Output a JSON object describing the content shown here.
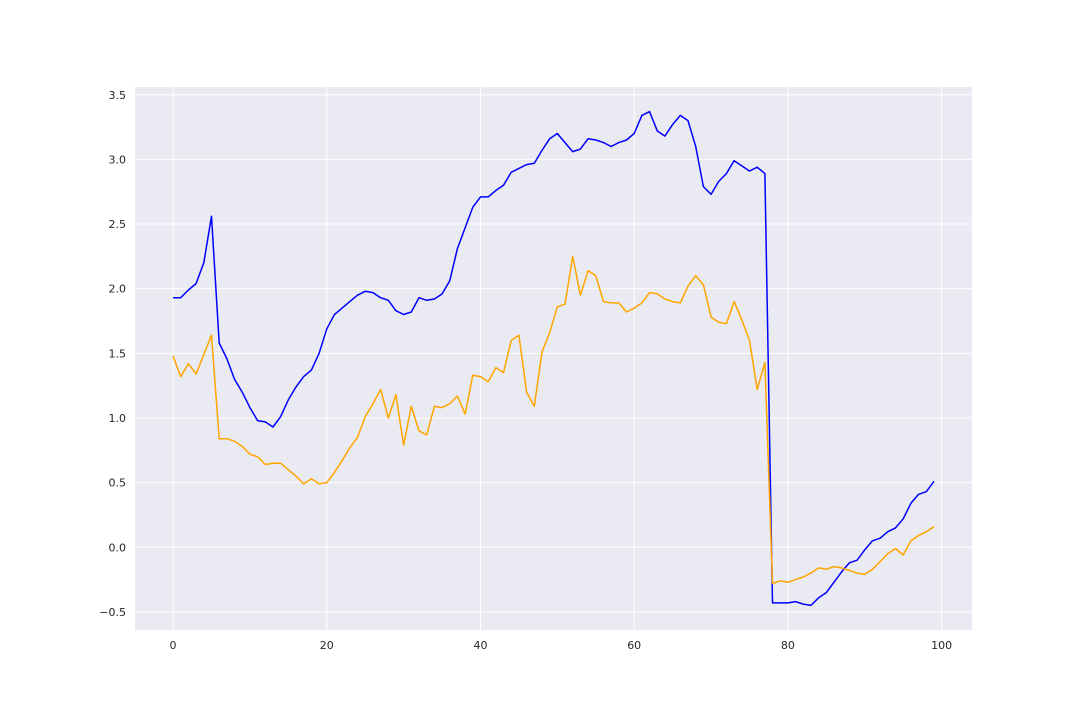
{
  "chart_data": {
    "type": "line",
    "title": "",
    "xlabel": "",
    "ylabel": "",
    "xlim": [
      -4.95,
      103.95
    ],
    "ylim": [
      -0.64,
      3.56
    ],
    "grid": true,
    "background": "#eaeaf2",
    "grid_color": "#ffffff",
    "x_ticks": [
      0,
      20,
      40,
      60,
      80,
      100
    ],
    "y_ticks": [
      -0.5,
      0.0,
      0.5,
      1.0,
      1.5,
      2.0,
      2.5,
      3.0,
      3.5
    ],
    "x_tick_labels": [
      "0",
      "20",
      "40",
      "60",
      "80",
      "100"
    ],
    "y_tick_labels": [
      "−0.5",
      "0.0",
      "0.5",
      "1.0",
      "1.5",
      "2.0",
      "2.5",
      "3.0",
      "3.5"
    ],
    "x": [
      0,
      1,
      2,
      3,
      4,
      5,
      6,
      7,
      8,
      9,
      10,
      11,
      12,
      13,
      14,
      15,
      16,
      17,
      18,
      19,
      20,
      21,
      22,
      23,
      24,
      25,
      26,
      27,
      28,
      29,
      30,
      31,
      32,
      33,
      34,
      35,
      36,
      37,
      38,
      39,
      40,
      41,
      42,
      43,
      44,
      45,
      46,
      47,
      48,
      49,
      50,
      51,
      52,
      53,
      54,
      55,
      56,
      57,
      58,
      59,
      60,
      61,
      62,
      63,
      64,
      65,
      66,
      67,
      68,
      69,
      70,
      71,
      72,
      73,
      74,
      75,
      76,
      77,
      78,
      79,
      80,
      81,
      82,
      83,
      84,
      85,
      86,
      87,
      88,
      89,
      90,
      91,
      92,
      93,
      94,
      95,
      96,
      97,
      98,
      99
    ],
    "series": [
      {
        "color": "#0000ff",
        "values": [
          1.93,
          1.93,
          1.99,
          2.04,
          2.2,
          2.56,
          1.58,
          1.46,
          1.3,
          1.2,
          1.08,
          0.98,
          0.97,
          0.93,
          1.01,
          1.14,
          1.24,
          1.32,
          1.37,
          1.5,
          1.69,
          1.8,
          1.85,
          1.9,
          1.95,
          1.98,
          1.97,
          1.93,
          1.91,
          1.83,
          1.8,
          1.82,
          1.93,
          1.91,
          1.92,
          1.96,
          2.06,
          2.31,
          2.47,
          2.63,
          2.71,
          2.71,
          2.76,
          2.8,
          2.9,
          2.93,
          2.96,
          2.97,
          3.07,
          3.16,
          3.2,
          3.13,
          3.06,
          3.08,
          3.16,
          3.15,
          3.13,
          3.1,
          3.13,
          3.15,
          3.2,
          3.34,
          3.37,
          3.22,
          3.18,
          3.27,
          3.34,
          3.3,
          3.1,
          2.79,
          2.73,
          2.83,
          2.89,
          2.99,
          2.95,
          2.91,
          2.94,
          2.89,
          -0.43,
          -0.43,
          -0.43,
          -0.42,
          -0.44,
          -0.45,
          -0.39,
          -0.35,
          -0.27,
          -0.19,
          -0.12,
          -0.1,
          -0.02,
          0.05,
          0.07,
          0.12,
          0.15,
          0.22,
          0.34,
          0.41,
          0.43,
          0.51
        ]
      },
      {
        "color": "#ffa500",
        "values": [
          1.48,
          1.32,
          1.42,
          1.34,
          1.49,
          1.64,
          0.84,
          0.84,
          0.82,
          0.78,
          0.72,
          0.7,
          0.64,
          0.65,
          0.65,
          0.6,
          0.55,
          0.49,
          0.53,
          0.49,
          0.5,
          0.58,
          0.67,
          0.77,
          0.85,
          1.01,
          1.11,
          1.22,
          1.0,
          1.18,
          0.79,
          1.09,
          0.9,
          0.87,
          1.09,
          1.08,
          1.11,
          1.17,
          1.03,
          1.33,
          1.32,
          1.28,
          1.39,
          1.35,
          1.6,
          1.64,
          1.2,
          1.09,
          1.51,
          1.66,
          1.86,
          1.88,
          2.25,
          1.95,
          2.14,
          2.1,
          1.9,
          1.89,
          1.89,
          1.82,
          1.85,
          1.89,
          1.97,
          1.96,
          1.92,
          1.9,
          1.89,
          2.02,
          2.1,
          2.03,
          1.78,
          1.74,
          1.73,
          1.9,
          1.76,
          1.6,
          1.22,
          1.43,
          -0.28,
          -0.26,
          -0.27,
          -0.25,
          -0.23,
          -0.2,
          -0.16,
          -0.17,
          -0.15,
          -0.16,
          -0.18,
          -0.2,
          -0.21,
          -0.17,
          -0.11,
          -0.05,
          -0.01,
          -0.06,
          0.05,
          0.09,
          0.12,
          0.16
        ]
      }
    ]
  }
}
